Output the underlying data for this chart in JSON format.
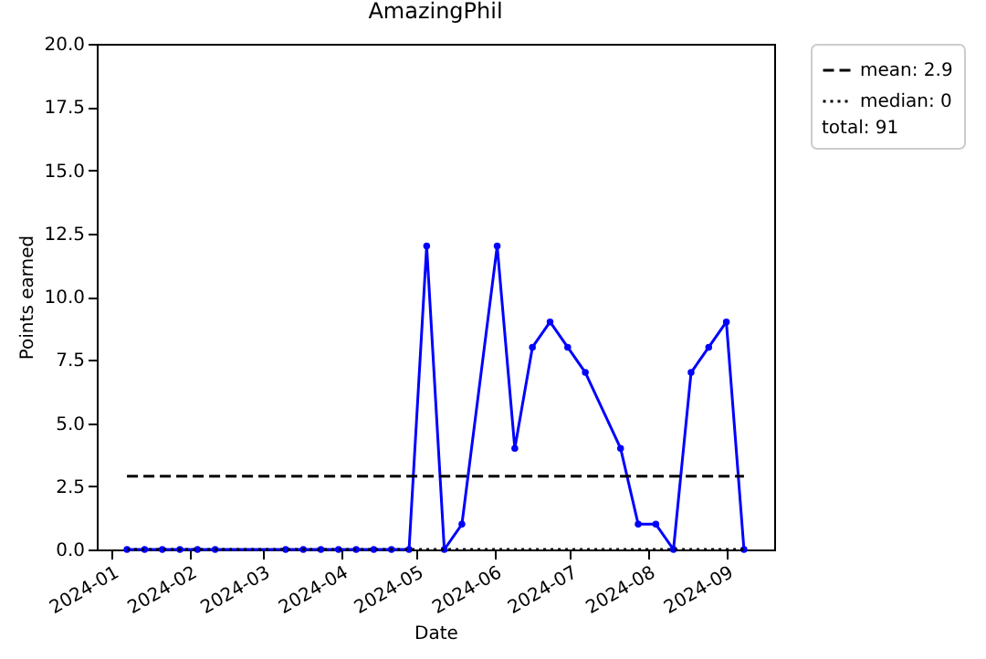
{
  "chart_data": {
    "type": "line",
    "title": "AmazingPhil",
    "xlabel": "Date",
    "ylabel": "Points earned",
    "xlim": [
      "2023-12-26",
      "2024-09-20"
    ],
    "ylim": [
      0,
      20
    ],
    "xticks": [
      "2024-01",
      "2024-02",
      "2024-03",
      "2024-04",
      "2024-05",
      "2024-06",
      "2024-07",
      "2024-08",
      "2024-09"
    ],
    "yticks": [
      {
        "value": 0,
        "label": "0.0"
      },
      2.5,
      {
        "value": 5,
        "label": "5.0"
      },
      7.5,
      {
        "value": 10,
        "label": "10.0"
      },
      12.5,
      {
        "value": 15,
        "label": "15.0"
      },
      17.5,
      {
        "value": 20,
        "label": "20.0"
      }
    ],
    "grid": false,
    "legend": "top right",
    "annotations": [
      "total: 91"
    ],
    "series": [
      {
        "color": "#0000ff",
        "marker": "circle",
        "line_style": "solid",
        "x": [
          "2024-01-07",
          "2024-01-14",
          "2024-01-21",
          "2024-01-28",
          "2024-02-04",
          "2024-02-11",
          "2024-03-10",
          "2024-03-17",
          "2024-03-24",
          "2024-03-31",
          "2024-04-07",
          "2024-04-14",
          "2024-04-21",
          "2024-04-28",
          "2024-05-05",
          "2024-05-12",
          "2024-05-19",
          "2024-06-02",
          "2024-06-09",
          "2024-06-16",
          "2024-06-23",
          "2024-06-30",
          "2024-07-07",
          "2024-07-21",
          "2024-07-28",
          "2024-08-04",
          "2024-08-11",
          "2024-08-18",
          "2024-08-25",
          "2024-09-01",
          "2024-09-08"
        ],
        "values": [
          0,
          0,
          0,
          0,
          0,
          0,
          0,
          0,
          0,
          0,
          0,
          0,
          0,
          0,
          12,
          0,
          1,
          12,
          4,
          8,
          9,
          8,
          7,
          4,
          1,
          1,
          0,
          7,
          8,
          9,
          0
        ]
      },
      {
        "name": "mean: 2.9",
        "color": "#000000",
        "marker": "none",
        "line_style": "dashed",
        "x": [
          "2024-01-07",
          "2024-09-08"
        ],
        "values": [
          2.9,
          2.9
        ]
      },
      {
        "name": "median: 0",
        "color": "#000000",
        "marker": "none",
        "line_style": "dotted",
        "x": [
          "2024-01-07",
          "2024-09-08"
        ],
        "values": [
          0,
          0
        ]
      }
    ]
  }
}
